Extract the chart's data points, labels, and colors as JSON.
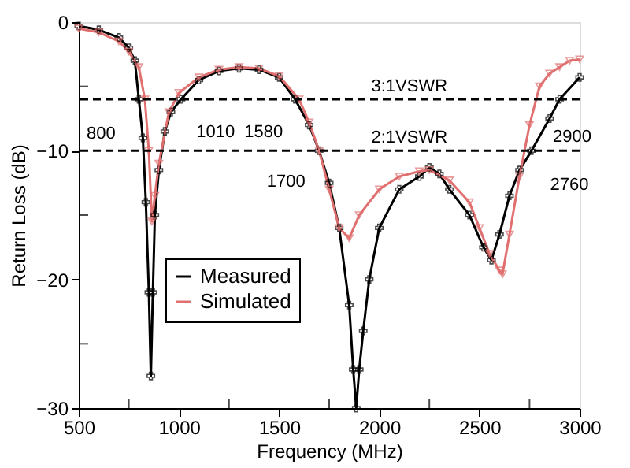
{
  "chart_data": {
    "type": "line",
    "xlabel": "Frequency (MHz)",
    "ylabel": "Return Loss (dB)",
    "xlim": [
      500,
      3000
    ],
    "ylim": [
      -30,
      0
    ],
    "xticks": [
      500,
      {
        "value": 750,
        "label": null
      },
      1000,
      {
        "value": 1250,
        "label": null
      },
      1500,
      {
        "value": 1750,
        "label": null
      },
      2000,
      {
        "value": 2250,
        "label": null
      },
      2500,
      {
        "value": 2750,
        "label": null
      },
      3000
    ],
    "yticks": [
      -30,
      {
        "value": -25,
        "label": null
      },
      -20,
      {
        "value": -15,
        "label": null
      },
      -10,
      {
        "value": -5,
        "label": null
      },
      0
    ],
    "grid": false,
    "legend": "bottom left",
    "line_style": "solid",
    "series": [
      {
        "name": "Measured",
        "color": "#000000",
        "marker": "cross",
        "x": [
          500,
          600,
          700,
          750,
          780,
          800,
          820,
          835,
          850,
          860,
          870,
          880,
          900,
          930,
          960,
          1010,
          1100,
          1200,
          1300,
          1400,
          1500,
          1580,
          1650,
          1700,
          1750,
          1800,
          1850,
          1870,
          1885,
          1900,
          1920,
          1950,
          2000,
          2100,
          2200,
          2250,
          2300,
          2350,
          2450,
          2520,
          2560,
          2600,
          2650,
          2700,
          2760,
          2850,
          2900,
          3000
        ],
        "values": [
          -0.3,
          -0.6,
          -1.2,
          -2,
          -3,
          -6,
          -9,
          -14,
          -21,
          -27.5,
          -21,
          -15,
          -11.5,
          -8.5,
          -7,
          -6,
          -4.5,
          -3.8,
          -3.6,
          -3.7,
          -4.3,
          -6,
          -8,
          -10,
          -12.5,
          -16,
          -22,
          -27,
          -30,
          -27,
          -24,
          -20,
          -16,
          -13,
          -12,
          -11.3,
          -11.8,
          -13,
          -15,
          -17.5,
          -18.5,
          -16.5,
          -13.5,
          -11.5,
          -10,
          -7.5,
          -6,
          -4.3
        ]
      },
      {
        "name": "Simulated",
        "color": "#e07070",
        "marker": "triangle-down",
        "x": [
          500,
          600,
          700,
          750,
          800,
          830,
          850,
          865,
          880,
          900,
          950,
          1000,
          1100,
          1200,
          1300,
          1400,
          1500,
          1600,
          1650,
          1700,
          1750,
          1800,
          1850,
          1900,
          2000,
          2100,
          2200,
          2250,
          2350,
          2450,
          2500,
          2550,
          2600,
          2615,
          2650,
          2700,
          2750,
          2800,
          2850,
          2900,
          2950,
          3000
        ],
        "values": [
          -0.5,
          -0.8,
          -1.5,
          -2.3,
          -3.5,
          -6,
          -10,
          -15.5,
          -13.5,
          -11,
          -7,
          -5.5,
          -4.3,
          -3.7,
          -3.5,
          -3.6,
          -4.2,
          -6,
          -7.8,
          -10,
          -13,
          -16,
          -16.8,
          -15,
          -13,
          -12,
          -11.6,
          -11.5,
          -12.3,
          -14,
          -16,
          -18,
          -19.3,
          -19.6,
          -16.5,
          -12,
          -8,
          -5,
          -4,
          -3.5,
          -3,
          -2.9
        ]
      }
    ],
    "ref_lines": [
      {
        "axis": "y",
        "value": -6,
        "color": "#000000",
        "line_style": "dashed"
      },
      {
        "axis": "y",
        "value": -10,
        "color": "#000000",
        "line_style": "dashed"
      }
    ],
    "annotations": [
      {
        "text": "3:1VSWR",
        "x": 2150,
        "y": -6
      },
      {
        "text": "2:1VSWR",
        "x": 2150,
        "y": -10
      },
      {
        "text": "800",
        "x": 800,
        "y": -6
      },
      {
        "text": "1010",
        "x": 1010,
        "y": -6
      },
      {
        "text": "1580",
        "x": 1580,
        "y": -6
      },
      {
        "text": "1700",
        "x": 1700,
        "y": -10
      },
      {
        "text": "2760",
        "x": 2760,
        "y": -10
      },
      {
        "text": "2900",
        "x": 2900,
        "y": -6
      }
    ]
  }
}
